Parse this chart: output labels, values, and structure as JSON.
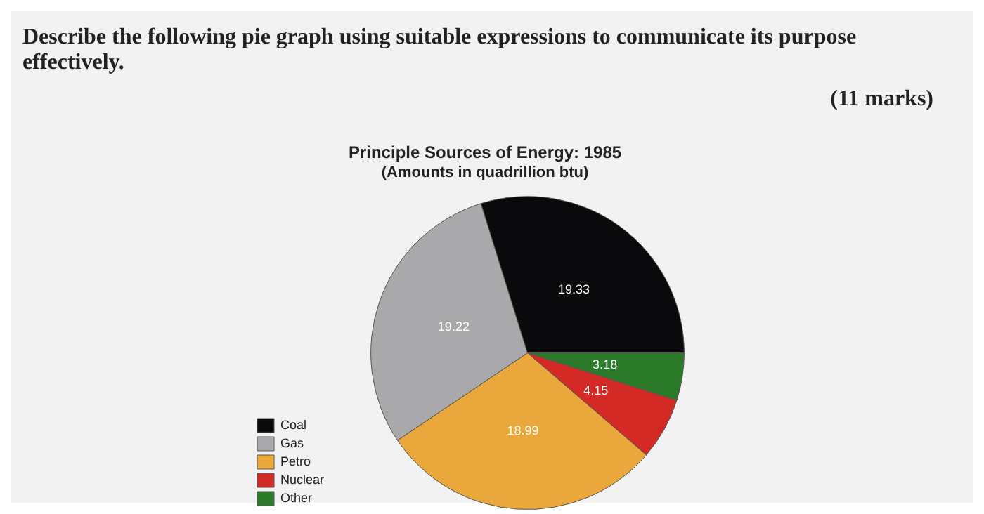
{
  "chart_data": {
    "type": "pie",
    "title": "Principle Sources of Energy: 1985",
    "subtitle": "(Amounts in quadrillion btu)",
    "annotations": [
      "Describe the following pie graph using suitable expressions to communicate its purpose effectively.",
      "(11 marks)"
    ],
    "categories": [
      "Coal",
      "Gas",
      "Petro",
      "Nuclear",
      "Other"
    ],
    "values": [
      19.33,
      19.22,
      18.99,
      4.15,
      3.18
    ],
    "colors": [
      "#0a0a0c",
      "#a9a9ab",
      "#eaa83c",
      "#d42a26",
      "#2a7a2a"
    ],
    "data_labels": true,
    "legend": "left"
  }
}
